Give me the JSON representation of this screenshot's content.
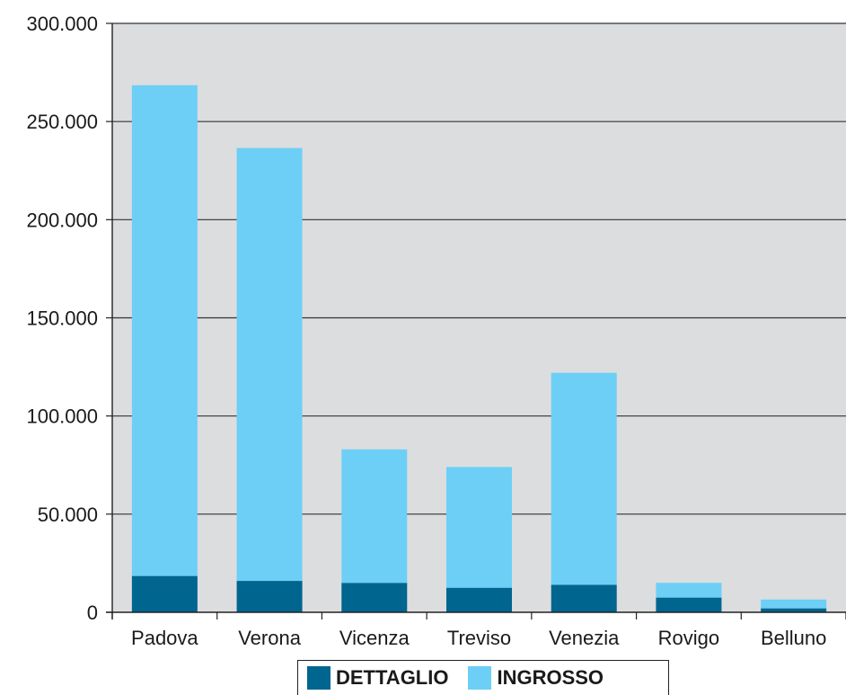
{
  "colors": {
    "plot_background": "#dcdddf",
    "dettaglio": "#00658f",
    "ingrosso": "#6dcff6",
    "gridline": "#333333"
  },
  "chart_data": {
    "type": "bar",
    "stacked": true,
    "categories": [
      "Padova",
      "Verona",
      "Vicenza",
      "Treviso",
      "Venezia",
      "Rovigo",
      "Belluno"
    ],
    "series": [
      {
        "name": "DETTAGLIO",
        "values": [
          18500,
          16000,
          15000,
          12500,
          14000,
          7500,
          2000
        ]
      },
      {
        "name": "INGROSSO",
        "values": [
          250000,
          220500,
          68000,
          61500,
          108000,
          7500,
          4500
        ]
      }
    ],
    "ylim": [
      0,
      300000
    ],
    "yticks": [
      "0",
      "50.000",
      "100.000",
      "150.000",
      "200.000",
      "250.000",
      "300.000"
    ],
    "grid": true,
    "legend_position": "bottom"
  }
}
